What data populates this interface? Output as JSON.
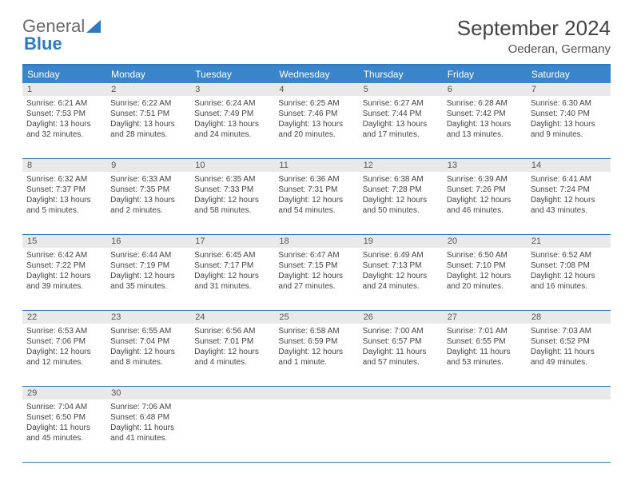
{
  "logo": {
    "text1": "General",
    "text2": "Blue"
  },
  "title": "September 2024",
  "location": "Oederan, Germany",
  "colors": {
    "header_bg": "#3a85c9",
    "border": "#2f7abf",
    "daynum_bg": "#e9e9e9",
    "text": "#444444"
  },
  "weekdays": [
    "Sunday",
    "Monday",
    "Tuesday",
    "Wednesday",
    "Thursday",
    "Friday",
    "Saturday"
  ],
  "weeks": [
    [
      {
        "n": "1",
        "sr": "Sunrise: 6:21 AM",
        "ss": "Sunset: 7:53 PM",
        "d1": "Daylight: 13 hours",
        "d2": "and 32 minutes."
      },
      {
        "n": "2",
        "sr": "Sunrise: 6:22 AM",
        "ss": "Sunset: 7:51 PM",
        "d1": "Daylight: 13 hours",
        "d2": "and 28 minutes."
      },
      {
        "n": "3",
        "sr": "Sunrise: 6:24 AM",
        "ss": "Sunset: 7:49 PM",
        "d1": "Daylight: 13 hours",
        "d2": "and 24 minutes."
      },
      {
        "n": "4",
        "sr": "Sunrise: 6:25 AM",
        "ss": "Sunset: 7:46 PM",
        "d1": "Daylight: 13 hours",
        "d2": "and 20 minutes."
      },
      {
        "n": "5",
        "sr": "Sunrise: 6:27 AM",
        "ss": "Sunset: 7:44 PM",
        "d1": "Daylight: 13 hours",
        "d2": "and 17 minutes."
      },
      {
        "n": "6",
        "sr": "Sunrise: 6:28 AM",
        "ss": "Sunset: 7:42 PM",
        "d1": "Daylight: 13 hours",
        "d2": "and 13 minutes."
      },
      {
        "n": "7",
        "sr": "Sunrise: 6:30 AM",
        "ss": "Sunset: 7:40 PM",
        "d1": "Daylight: 13 hours",
        "d2": "and 9 minutes."
      }
    ],
    [
      {
        "n": "8",
        "sr": "Sunrise: 6:32 AM",
        "ss": "Sunset: 7:37 PM",
        "d1": "Daylight: 13 hours",
        "d2": "and 5 minutes."
      },
      {
        "n": "9",
        "sr": "Sunrise: 6:33 AM",
        "ss": "Sunset: 7:35 PM",
        "d1": "Daylight: 13 hours",
        "d2": "and 2 minutes."
      },
      {
        "n": "10",
        "sr": "Sunrise: 6:35 AM",
        "ss": "Sunset: 7:33 PM",
        "d1": "Daylight: 12 hours",
        "d2": "and 58 minutes."
      },
      {
        "n": "11",
        "sr": "Sunrise: 6:36 AM",
        "ss": "Sunset: 7:31 PM",
        "d1": "Daylight: 12 hours",
        "d2": "and 54 minutes."
      },
      {
        "n": "12",
        "sr": "Sunrise: 6:38 AM",
        "ss": "Sunset: 7:28 PM",
        "d1": "Daylight: 12 hours",
        "d2": "and 50 minutes."
      },
      {
        "n": "13",
        "sr": "Sunrise: 6:39 AM",
        "ss": "Sunset: 7:26 PM",
        "d1": "Daylight: 12 hours",
        "d2": "and 46 minutes."
      },
      {
        "n": "14",
        "sr": "Sunrise: 6:41 AM",
        "ss": "Sunset: 7:24 PM",
        "d1": "Daylight: 12 hours",
        "d2": "and 43 minutes."
      }
    ],
    [
      {
        "n": "15",
        "sr": "Sunrise: 6:42 AM",
        "ss": "Sunset: 7:22 PM",
        "d1": "Daylight: 12 hours",
        "d2": "and 39 minutes."
      },
      {
        "n": "16",
        "sr": "Sunrise: 6:44 AM",
        "ss": "Sunset: 7:19 PM",
        "d1": "Daylight: 12 hours",
        "d2": "and 35 minutes."
      },
      {
        "n": "17",
        "sr": "Sunrise: 6:45 AM",
        "ss": "Sunset: 7:17 PM",
        "d1": "Daylight: 12 hours",
        "d2": "and 31 minutes."
      },
      {
        "n": "18",
        "sr": "Sunrise: 6:47 AM",
        "ss": "Sunset: 7:15 PM",
        "d1": "Daylight: 12 hours",
        "d2": "and 27 minutes."
      },
      {
        "n": "19",
        "sr": "Sunrise: 6:49 AM",
        "ss": "Sunset: 7:13 PM",
        "d1": "Daylight: 12 hours",
        "d2": "and 24 minutes."
      },
      {
        "n": "20",
        "sr": "Sunrise: 6:50 AM",
        "ss": "Sunset: 7:10 PM",
        "d1": "Daylight: 12 hours",
        "d2": "and 20 minutes."
      },
      {
        "n": "21",
        "sr": "Sunrise: 6:52 AM",
        "ss": "Sunset: 7:08 PM",
        "d1": "Daylight: 12 hours",
        "d2": "and 16 minutes."
      }
    ],
    [
      {
        "n": "22",
        "sr": "Sunrise: 6:53 AM",
        "ss": "Sunset: 7:06 PM",
        "d1": "Daylight: 12 hours",
        "d2": "and 12 minutes."
      },
      {
        "n": "23",
        "sr": "Sunrise: 6:55 AM",
        "ss": "Sunset: 7:04 PM",
        "d1": "Daylight: 12 hours",
        "d2": "and 8 minutes."
      },
      {
        "n": "24",
        "sr": "Sunrise: 6:56 AM",
        "ss": "Sunset: 7:01 PM",
        "d1": "Daylight: 12 hours",
        "d2": "and 4 minutes."
      },
      {
        "n": "25",
        "sr": "Sunrise: 6:58 AM",
        "ss": "Sunset: 6:59 PM",
        "d1": "Daylight: 12 hours",
        "d2": "and 1 minute."
      },
      {
        "n": "26",
        "sr": "Sunrise: 7:00 AM",
        "ss": "Sunset: 6:57 PM",
        "d1": "Daylight: 11 hours",
        "d2": "and 57 minutes."
      },
      {
        "n": "27",
        "sr": "Sunrise: 7:01 AM",
        "ss": "Sunset: 6:55 PM",
        "d1": "Daylight: 11 hours",
        "d2": "and 53 minutes."
      },
      {
        "n": "28",
        "sr": "Sunrise: 7:03 AM",
        "ss": "Sunset: 6:52 PM",
        "d1": "Daylight: 11 hours",
        "d2": "and 49 minutes."
      }
    ],
    [
      {
        "n": "29",
        "sr": "Sunrise: 7:04 AM",
        "ss": "Sunset: 6:50 PM",
        "d1": "Daylight: 11 hours",
        "d2": "and 45 minutes."
      },
      {
        "n": "30",
        "sr": "Sunrise: 7:06 AM",
        "ss": "Sunset: 6:48 PM",
        "d1": "Daylight: 11 hours",
        "d2": "and 41 minutes."
      },
      null,
      null,
      null,
      null,
      null
    ]
  ]
}
